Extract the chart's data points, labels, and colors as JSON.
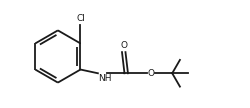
{
  "bg_color": "#ffffff",
  "line_color": "#1a1a1a",
  "line_width": 1.3,
  "text_color": "#1a1a1a",
  "cl_label": "Cl",
  "nh_label": "NH",
  "o_carbonyl_label": "O",
  "o_ester_label": "O",
  "figsize": [
    2.5,
    1.08
  ],
  "dpi": 100,
  "xlim": [
    0.0,
    10.0
  ],
  "ylim": [
    0.5,
    4.5
  ]
}
